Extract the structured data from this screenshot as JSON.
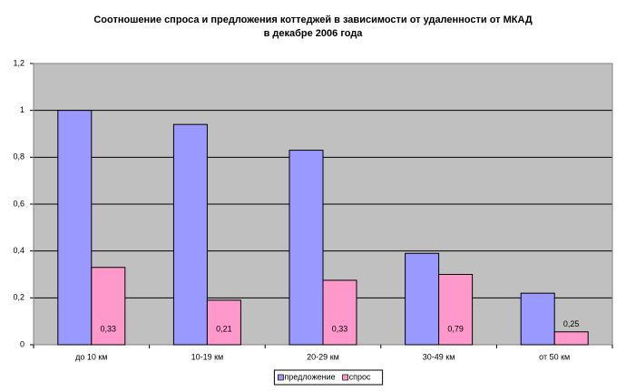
{
  "chart_data": {
    "type": "bar",
    "title": "Соотношение спроса и предложения коттеджей в зависимости от удаленности от МКАД",
    "subtitle": "в декабре 2006 года",
    "categories": [
      "до 10 км",
      "10-19 км",
      "20-29 км",
      "30-49 км",
      "от 50 км"
    ],
    "series": [
      {
        "name": "предложение",
        "color": "#9999ff",
        "values": [
          1.0,
          0.94,
          0.83,
          0.39,
          0.22
        ]
      },
      {
        "name": "спрос",
        "color": "#ff99cc",
        "values": [
          0.33,
          0.19,
          0.275,
          0.3,
          0.055
        ]
      }
    ],
    "annotations": [
      "0,33",
      "0,21",
      "0,33",
      "0,79",
      "0,25"
    ],
    "ylim": [
      0,
      1.2
    ],
    "yticks": [
      0,
      {
        "value": 0.2,
        "label": "0,2"
      },
      {
        "value": 0.4,
        "label": "0,4"
      },
      {
        "value": 0.6,
        "label": "0,6"
      },
      {
        "value": 0.8,
        "label": "0,8"
      },
      1,
      {
        "value": 1.2,
        "label": "1,2"
      }
    ],
    "grid": true,
    "legend": "bottom"
  }
}
